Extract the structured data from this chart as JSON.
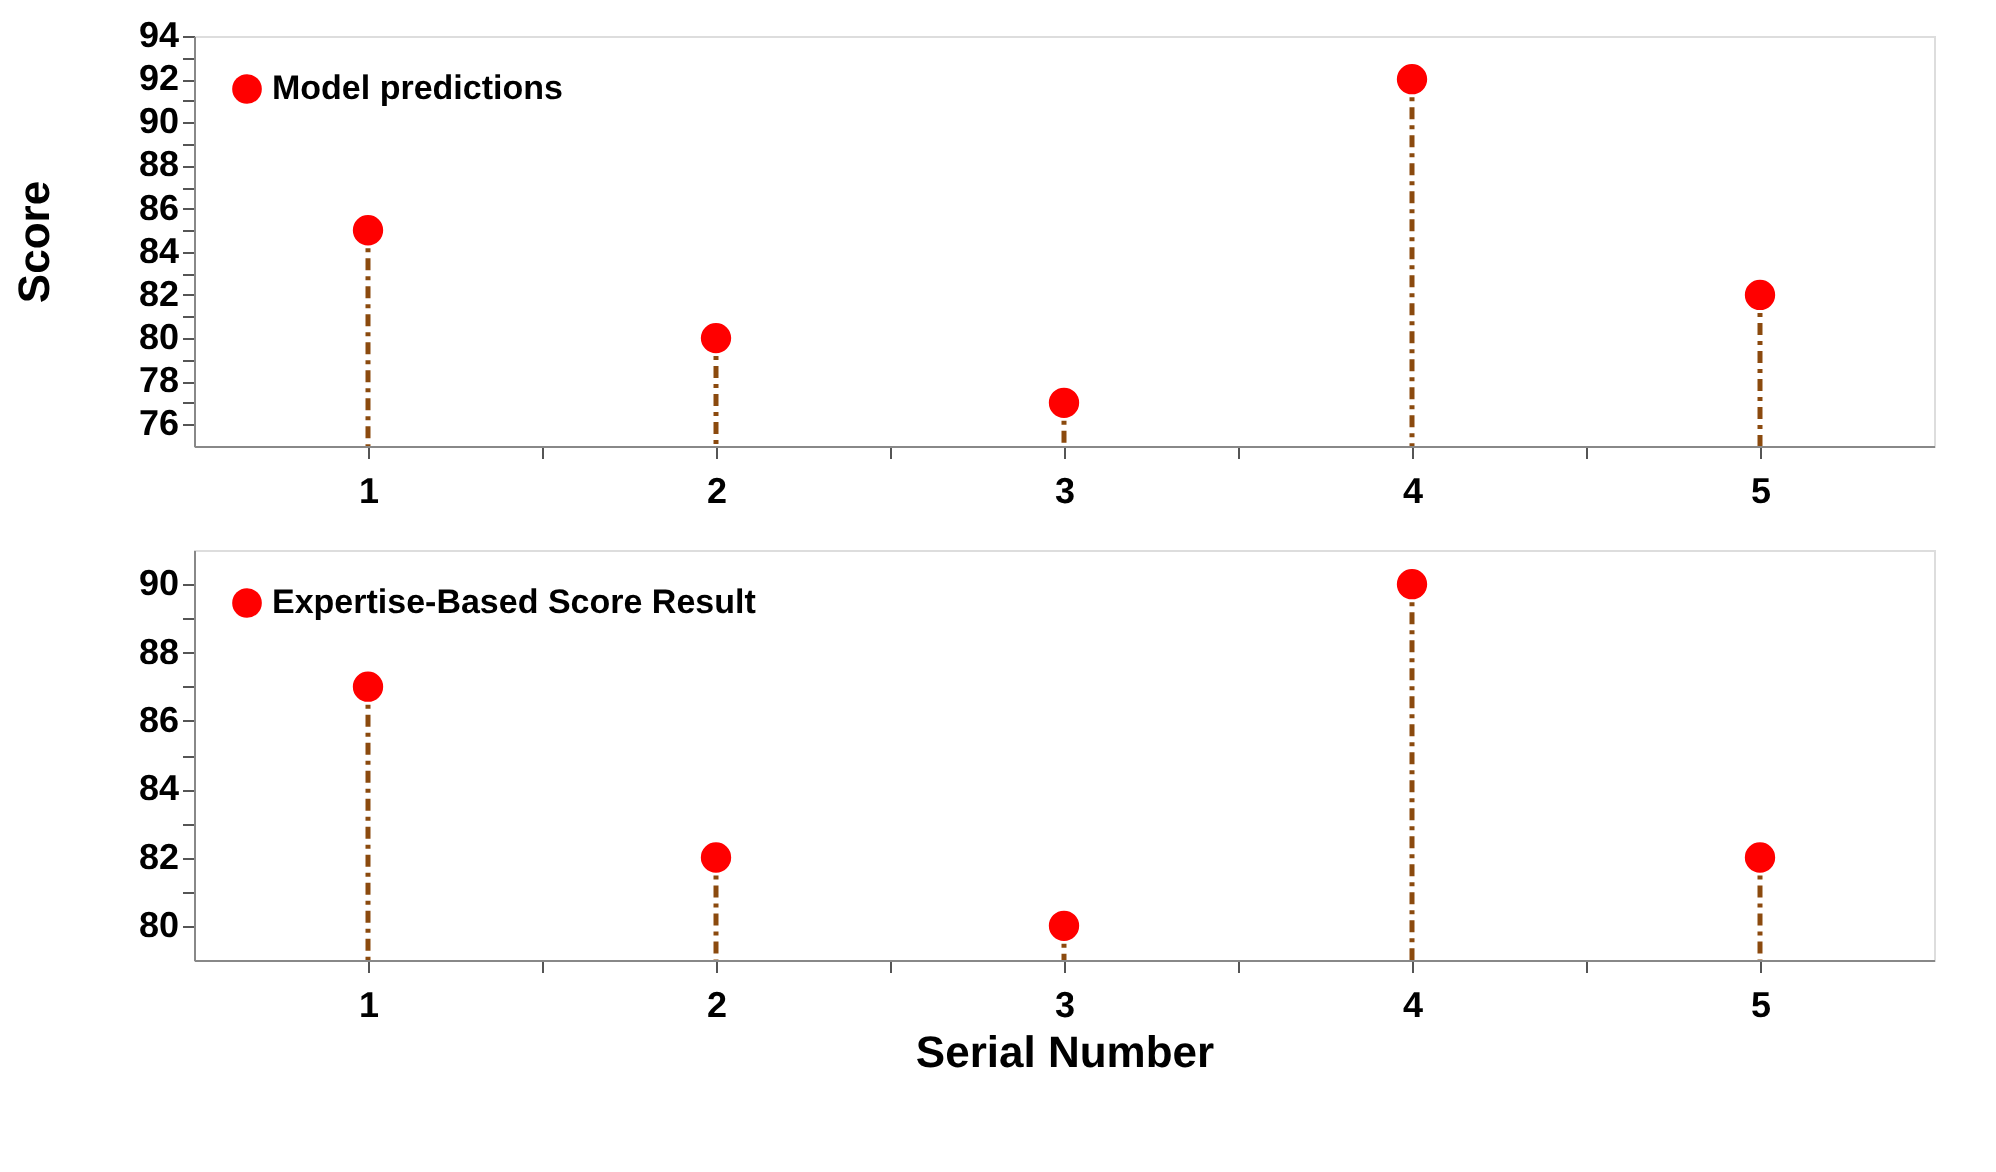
{
  "chart_data": [
    {
      "type": "lollipop",
      "ylabel": "Score",
      "x": [
        1,
        2,
        3,
        4,
        5
      ],
      "xlim": [
        0.5,
        5.5
      ],
      "xticks": [
        1,
        {
          "value": 1.5,
          "label": null
        },
        2,
        {
          "value": 2.5,
          "label": null
        },
        3,
        {
          "value": 3.5,
          "label": null
        },
        4,
        {
          "value": 4.5,
          "label": null
        },
        5
      ],
      "ylim": [
        75,
        94
      ],
      "yticks": [
        76,
        {
          "value": 77,
          "label": null
        },
        78,
        {
          "value": 79,
          "label": null
        },
        80,
        {
          "value": 81,
          "label": null
        },
        82,
        {
          "value": 83,
          "label": null
        },
        84,
        {
          "value": 85,
          "label": null
        },
        86,
        {
          "value": 87,
          "label": null
        },
        88,
        {
          "value": 89,
          "label": null
        },
        90,
        {
          "value": 91,
          "label": null
        },
        92,
        {
          "value": 93,
          "label": null
        },
        94
      ],
      "series": [
        {
          "name": "Model predictions",
          "color": "#ff0000",
          "values": [
            85,
            80,
            77,
            92,
            82
          ]
        }
      ],
      "marker": "circle",
      "line_style": "dashed",
      "grid": false,
      "legend": "top left"
    },
    {
      "type": "lollipop",
      "xlabel": "Serial Number",
      "x": [
        1,
        2,
        3,
        4,
        5
      ],
      "xlim": [
        0.5,
        5.5
      ],
      "xticks": [
        1,
        {
          "value": 1.5,
          "label": null
        },
        2,
        {
          "value": 2.5,
          "label": null
        },
        3,
        {
          "value": 3.5,
          "label": null
        },
        4,
        {
          "value": 4.5,
          "label": null
        },
        5
      ],
      "ylim": [
        79,
        91
      ],
      "yticks": [
        80,
        {
          "value": 81,
          "label": null
        },
        82,
        {
          "value": 83,
          "label": null
        },
        84,
        {
          "value": 85,
          "label": null
        },
        86,
        {
          "value": 87,
          "label": null
        },
        88,
        {
          "value": 89,
          "label": null
        },
        90
      ],
      "series": [
        {
          "name": "Expertise-Based Score Result",
          "color": "#ff0000",
          "values": [
            87,
            82,
            80,
            90,
            82
          ]
        }
      ],
      "marker": "circle",
      "line_style": "dashed",
      "grid": false,
      "legend": "top left"
    }
  ]
}
